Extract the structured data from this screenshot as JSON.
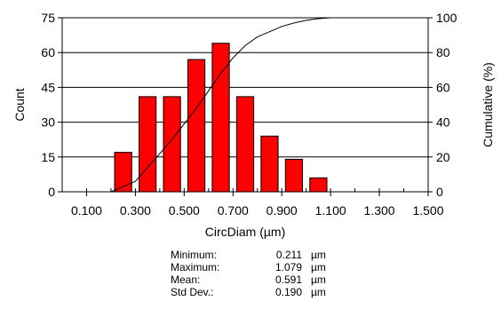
{
  "chart_data": {
    "type": "bar",
    "xlabel": "CircDiam (µm)",
    "ylabel": "Count",
    "y2label": "Cumulative (%)",
    "xlim": [
      0.0,
      1.5
    ],
    "ylim": [
      0,
      75
    ],
    "y2lim": [
      0,
      100
    ],
    "x_ticks": [
      "0.100",
      "0.300",
      "0.500",
      "0.700",
      "0.900",
      "1.100",
      "1.300",
      "1.500"
    ],
    "y_ticks": [
      "0",
      "15",
      "30",
      "45",
      "60",
      "75"
    ],
    "y2_ticks": [
      "0",
      "20",
      "40",
      "60",
      "80",
      "100"
    ],
    "bar_color": "#ff0000",
    "bin_width": 0.1,
    "bins": [
      {
        "x": 0.25,
        "value": 17
      },
      {
        "x": 0.35,
        "value": 41
      },
      {
        "x": 0.45,
        "value": 41
      },
      {
        "x": 0.55,
        "value": 57
      },
      {
        "x": 0.65,
        "value": 64
      },
      {
        "x": 0.75,
        "value": 41
      },
      {
        "x": 0.85,
        "value": 24
      },
      {
        "x": 0.95,
        "value": 14
      },
      {
        "x": 1.05,
        "value": 6
      }
    ],
    "cumulative": {
      "x": [
        0.2,
        0.25,
        0.3,
        0.35,
        0.4,
        0.45,
        0.5,
        0.55,
        0.6,
        0.65,
        0.7,
        0.75,
        0.8,
        0.85,
        0.9,
        0.95,
        1.0,
        1.05,
        1.1
      ],
      "values": [
        0,
        3,
        6,
        14,
        22,
        30,
        39,
        48,
        58,
        68,
        77,
        84,
        89,
        92,
        95,
        97,
        98.5,
        99.5,
        100
      ]
    },
    "grid": "horizontal"
  },
  "stats": [
    {
      "label": "Minimum:",
      "value": "0.211",
      "unit": "µm"
    },
    {
      "label": "Maximum:",
      "value": "1.079",
      "unit": "µm"
    },
    {
      "label": "Mean:",
      "value": "0.591",
      "unit": "µm"
    },
    {
      "label": "Std Dev.:",
      "value": "0.190",
      "unit": "µm"
    }
  ]
}
